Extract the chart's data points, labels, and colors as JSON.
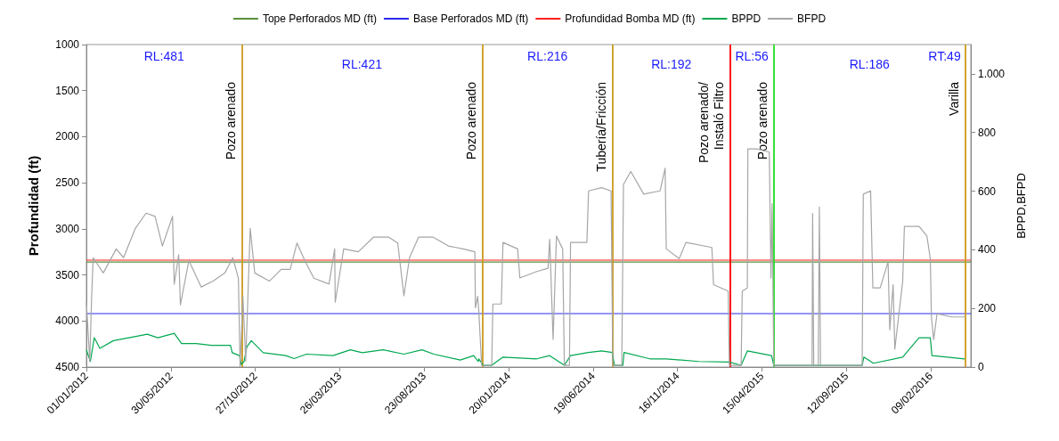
{
  "chart_data": {
    "type": "line",
    "ylabel": "Profundidad (ft)",
    "y2label": "BPPD,BFPD",
    "legend": "top",
    "marker": "none",
    "xlim": [
      "2012-01-01",
      "2016-04-20"
    ],
    "xticks": [
      {
        "value": "2012-01-01",
        "label": "01/01/2012"
      },
      {
        "value": "2012-05-30",
        "label": "30/05/2012"
      },
      {
        "value": "2012-10-27",
        "label": "27/10/2012"
      },
      {
        "value": "2013-03-26",
        "label": "26/03/2013"
      },
      {
        "value": "2013-08-23",
        "label": "23/08/2013"
      },
      {
        "value": "2014-01-20",
        "label": "20/01/2014"
      },
      {
        "value": "2014-06-19",
        "label": "19/06/2014"
      },
      {
        "value": "2014-11-16",
        "label": "16/11/2014"
      },
      {
        "value": "2015-04-15",
        "label": "15/04/2015"
      },
      {
        "value": "2015-09-12",
        "label": "12/09/2015"
      },
      {
        "value": "2016-02-09",
        "label": "09/02/2016"
      }
    ],
    "ylim": [
      4500,
      1000
    ],
    "yticks": [
      1000,
      1500,
      2000,
      2500,
      3000,
      3500,
      4000,
      4500
    ],
    "y2lim": [
      0,
      1100
    ],
    "y2ticks": [
      0,
      200,
      400,
      600,
      800,
      {
        "value": 1000,
        "label": "1.000"
      }
    ],
    "series": [
      {
        "name": "Tope Perforados MD (ft)",
        "color": "#5b8f3a",
        "x": [
          "2012-01-01",
          "2016-04-20"
        ],
        "values": [
          3360,
          3360
        ]
      },
      {
        "name": "Base Perforados MD (ft)",
        "color": "#2a2aee",
        "x": [
          "2012-01-01",
          "2016-04-20"
        ],
        "values": [
          3920,
          3920
        ]
      },
      {
        "name": "Profundidad Bomba MD (ft)",
        "color": "#ff2020",
        "x": [
          "2012-01-01",
          "2016-04-20"
        ],
        "values": [
          3340,
          3340
        ]
      },
      {
        "name": "BPPD",
        "color": "#00a850",
        "axis": "y2",
        "x": [
          "2012-01-01",
          "2012-01-08",
          "2012-01-15",
          "2012-01-25",
          "2012-02-18",
          "2012-03-31",
          "2012-04-18",
          "2012-05-07",
          "2012-06-05",
          "2012-06-18",
          "2012-07-14",
          "2012-08-10",
          "2012-09-13",
          "2012-09-16",
          "2012-09-29",
          "2012-10-02",
          "2012-10-07",
          "2012-10-12",
          "2012-10-20",
          "2012-11-10",
          "2012-12-20",
          "2013-01-04",
          "2013-01-26",
          "2013-03-14",
          "2013-04-14",
          "2013-05-05",
          "2013-06-11",
          "2013-07-18",
          "2013-08-19",
          "2013-09-09",
          "2013-10-26",
          "2013-11-19",
          "2013-11-27",
          "2013-11-28",
          "2013-12-06",
          "2013-12-21",
          "2014-01-10",
          "2014-03-11",
          "2014-04-03",
          "2014-04-29",
          "2014-05-10",
          "2014-06-11",
          "2014-07-04",
          "2014-07-23",
          "2014-07-27",
          "2014-08-11",
          "2014-08-13",
          "2014-09-28",
          "2014-10-27",
          "2014-12-24",
          "2015-02-16",
          "2015-03-09",
          "2015-03-20",
          "2015-05-02",
          "2015-05-06",
          "2015-10-10",
          "2015-10-13",
          "2015-10-30",
          "2015-12-21",
          "2016-01-19",
          "2016-02-08",
          "2016-02-11",
          "2016-04-09"
        ],
        "values": [
          59,
          19,
          100,
          64,
          90,
          105,
          112,
          100,
          115,
          80,
          80,
          74,
          74,
          49,
          39,
          9,
          19,
          69,
          90,
          49,
          39,
          29,
          44,
          39,
          59,
          49,
          59,
          44,
          59,
          44,
          24,
          39,
          19,
          28,
          6,
          6,
          34,
          28,
          39,
          6,
          39,
          50,
          55,
          50,
          6,
          6,
          50,
          28,
          28,
          19,
          17,
          6,
          55,
          39,
          6,
          6,
          34,
          13,
          34,
          100,
          100,
          39,
          28
        ]
      },
      {
        "name": "BFPD",
        "color": "#a6a6a6",
        "axis": "y2",
        "x": [
          "2012-01-01",
          "2012-01-07",
          "2012-01-10",
          "2012-01-13",
          "2012-01-31",
          "2012-02-23",
          "2012-03-07",
          "2012-03-28",
          "2012-04-16",
          "2012-05-02",
          "2012-05-15",
          "2012-06-02",
          "2012-06-05",
          "2012-06-13",
          "2012-06-16",
          "2012-07-01",
          "2012-07-23",
          "2012-08-13",
          "2012-09-03",
          "2012-09-17",
          "2012-09-27",
          "2012-09-30",
          "2012-10-05",
          "2012-10-10",
          "2012-10-18",
          "2012-10-26",
          "2012-11-21",
          "2012-12-12",
          "2012-12-28",
          "2013-01-09",
          "2013-01-23",
          "2013-02-08",
          "2013-03-07",
          "2013-03-17",
          "2013-03-18",
          "2013-04-02",
          "2013-04-28",
          "2013-05-25",
          "2013-06-21",
          "2013-07-07",
          "2013-07-18",
          "2013-07-28",
          "2013-08-13",
          "2013-09-08",
          "2013-10-05",
          "2013-10-31",
          "2013-11-21",
          "2013-11-22",
          "2013-11-26",
          "2013-11-28",
          "2013-12-03",
          "2013-12-21",
          "2013-12-23",
          "2014-01-07",
          "2014-01-10",
          "2014-02-05",
          "2014-02-09",
          "2014-03-11",
          "2014-03-31",
          "2014-04-03",
          "2014-04-09",
          "2014-04-15",
          "2014-04-26",
          "2014-04-29",
          "2014-05-08",
          "2014-05-10",
          "2014-06-08",
          "2014-06-11",
          "2014-07-04",
          "2014-07-21",
          "2014-07-24",
          "2014-08-09",
          "2014-08-12",
          "2014-08-25",
          "2014-09-17",
          "2014-10-16",
          "2014-10-25",
          "2014-10-27",
          "2014-11-19",
          "2014-12-01",
          "2015-01-16",
          "2015-01-19",
          "2015-02-14",
          "2015-02-16",
          "2015-03-09",
          "2015-03-11",
          "2015-03-20",
          "2015-03-21",
          "2015-04-06",
          "2015-04-28",
          "2015-05-01",
          "2015-05-03",
          "2015-05-06",
          "2015-07-13",
          "2015-07-14",
          "2015-07-16",
          "2015-07-24",
          "2015-07-26",
          "2015-07-28",
          "2015-10-10",
          "2015-10-12",
          "2015-10-25",
          "2015-10-29",
          "2015-11-11",
          "2015-11-25",
          "2015-11-28",
          "2015-12-04",
          "2015-12-07",
          "2015-12-21",
          "2015-12-24",
          "2016-01-19",
          "2016-02-02",
          "2016-02-08",
          "2016-02-10",
          "2016-02-14",
          "2016-02-20",
          "2016-03-17",
          "2016-04-11"
        ],
        "values": [
          221,
          20,
          221,
          373,
          321,
          403,
          373,
          473,
          525,
          514,
          413,
          514,
          283,
          383,
          212,
          363,
          273,
          293,
          321,
          373,
          303,
          0,
          241,
          20,
          473,
          321,
          293,
          333,
          333,
          423,
          363,
          303,
          283,
          403,
          221,
          403,
          393,
          443,
          443,
          423,
          243,
          373,
          443,
          443,
          413,
          403,
          393,
          202,
          241,
          193,
          6,
          6,
          215,
          215,
          425,
          403,
          304,
          326,
          337,
          436,
          94,
          447,
          403,
          6,
          6,
          425,
          425,
          601,
          612,
          601,
          6,
          6,
          623,
          667,
          590,
          601,
          678,
          403,
          370,
          425,
          408,
          281,
          259,
          6,
          6,
          259,
          270,
          744,
          744,
          733,
          304,
          557,
          6,
          6,
          524,
          6,
          6,
          546,
          6,
          6,
          590,
          601,
          270,
          270,
          359,
          127,
          281,
          61,
          293,
          480,
          480,
          447,
          370,
          171,
          94,
          182,
          171,
          171
        ]
      }
    ],
    "ref_lines": [
      {
        "axis": "x",
        "value": "2012-10-03",
        "label": "Pozo arenado",
        "color": "#cc9a1a"
      },
      {
        "axis": "x",
        "value": "2013-12-04",
        "label": "Pozo arenado",
        "color": "#cc9a1a"
      },
      {
        "axis": "x",
        "value": "2014-07-24",
        "label": "Tubería/Fricción",
        "color": "#cc9a1a"
      },
      {
        "axis": "x",
        "value": "2015-02-17",
        "label": "Pozo arenado/\nInstaló Filtro",
        "color": "#ff0000"
      },
      {
        "axis": "x",
        "value": "2015-05-06",
        "label": "Pozo arenado",
        "color": "#22dd22"
      },
      {
        "axis": "x",
        "value": "2016-04-10",
        "label": "Varilla",
        "color": "#cc9a1a"
      }
    ],
    "annotations": [
      "RL:481",
      "RL:421",
      "RL:216",
      "RL:192",
      "RL:56",
      "RL:186",
      "RT:49"
    ]
  }
}
